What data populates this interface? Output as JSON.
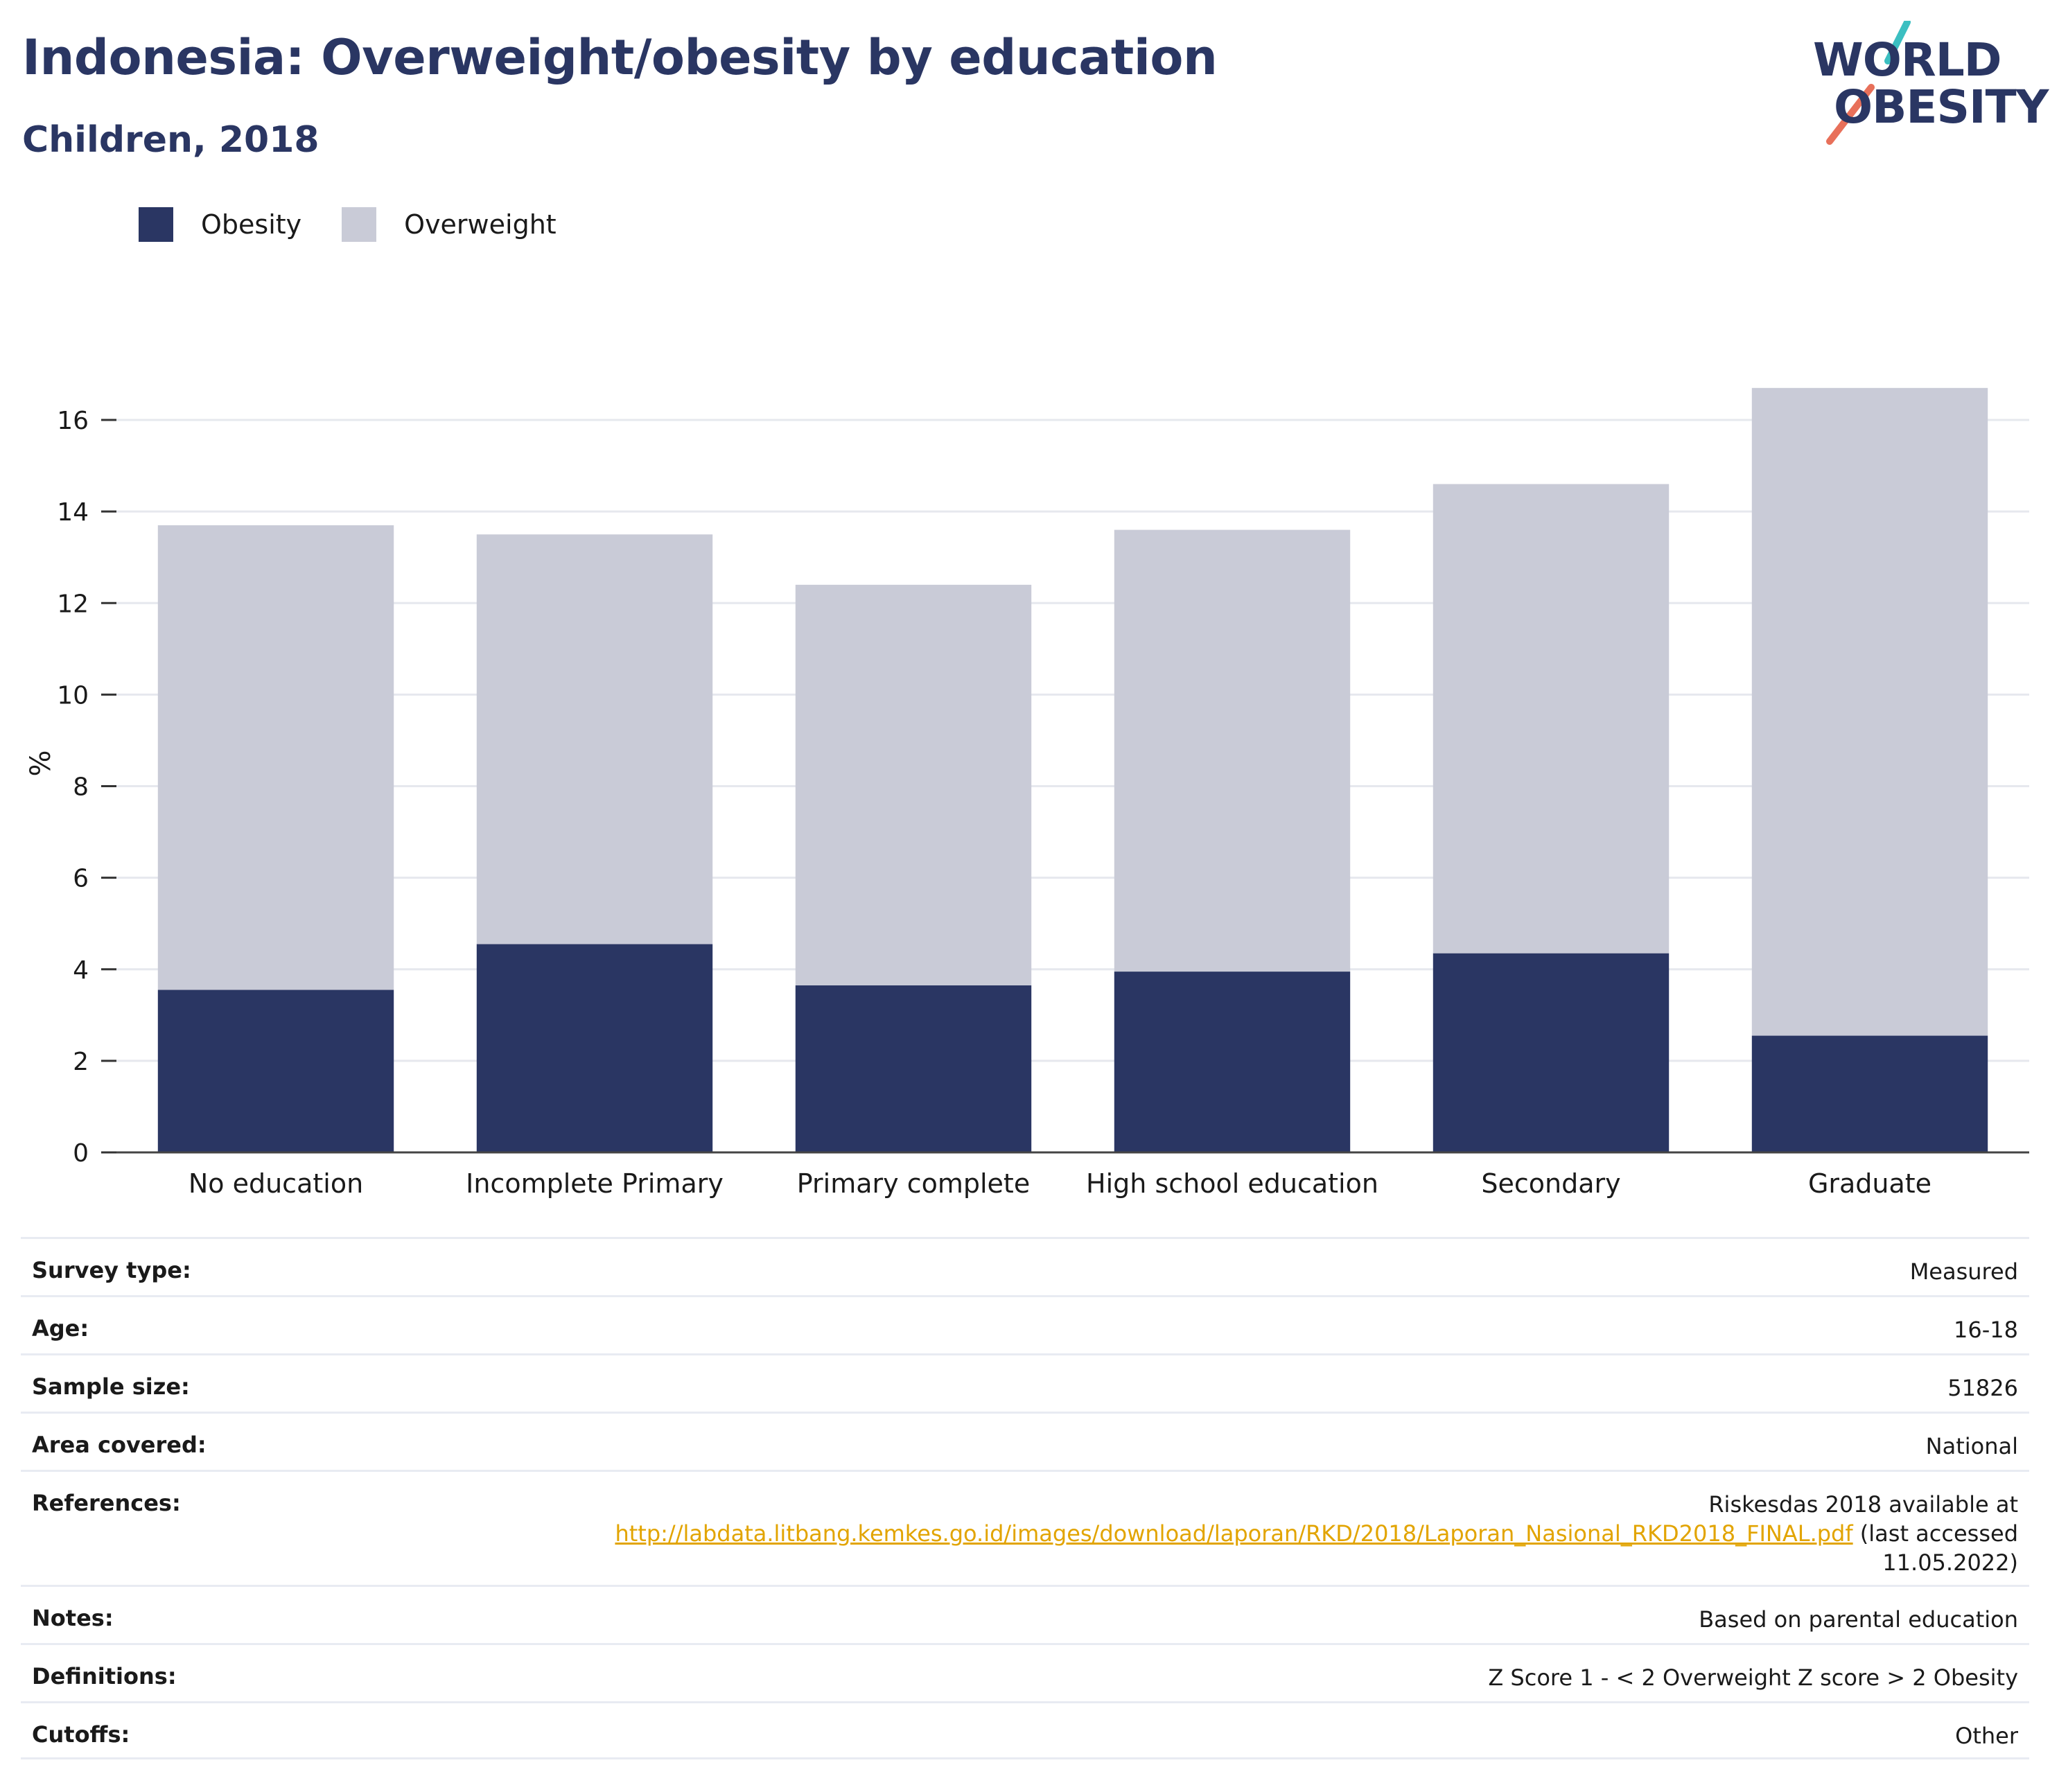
{
  "header": {
    "title": "Indonesia: Overweight/obesity by education",
    "subtitle": "Children, 2018"
  },
  "logo": {
    "line1": "WORLD",
    "line2": "OBESITY",
    "slash_colors": [
      "#3bbfc1",
      "#e8705a"
    ]
  },
  "legend": {
    "items": [
      {
        "label": "Obesity",
        "color": "#2a3663"
      },
      {
        "label": "Overweight",
        "color": "#c9cbd7"
      }
    ],
    "placement": "top-left"
  },
  "chart_data": {
    "type": "bar",
    "stacked": true,
    "categories": [
      "No education",
      "Incomplete Primary",
      "Primary complete",
      "High school education",
      "Secondary",
      "Graduate"
    ],
    "series": [
      {
        "name": "Obesity",
        "color": "#2a3663",
        "values": [
          3.55,
          4.55,
          3.65,
          3.95,
          4.35,
          2.55
        ]
      },
      {
        "name": "Overweight",
        "color": "#c9cbd7",
        "values": [
          10.15,
          8.95,
          8.75,
          9.65,
          10.25,
          14.15
        ]
      }
    ],
    "ylabel": "%",
    "xlabel": "",
    "ylim": [
      0,
      17
    ],
    "yticks": [
      0,
      2,
      4,
      6,
      8,
      10,
      12,
      14,
      16
    ],
    "grid": true
  },
  "info": {
    "rows": [
      {
        "label": "Survey type:",
        "value": "Measured"
      },
      {
        "label": "Age:",
        "value": "16-18"
      },
      {
        "label": "Sample size:",
        "value": "51826"
      },
      {
        "label": "Area covered:",
        "value": "National"
      },
      {
        "label": "References:",
        "value": "Riskesdas 2018 available at",
        "link": "http://labdata.litbang.kemkes.go.id/images/download/laporan/RKD/2018/Laporan_Nasional_RKD2018_FINAL.pdf",
        "value_after": "(last accessed",
        "value_end": "11.05.2022)"
      },
      {
        "label": "Notes:",
        "value": "Based on parental education"
      },
      {
        "label": "Definitions:",
        "value": "Z Score 1 - < 2 Overweight Z score > 2 Obesity"
      },
      {
        "label": "Cutoffs:",
        "value": "Other"
      }
    ]
  }
}
